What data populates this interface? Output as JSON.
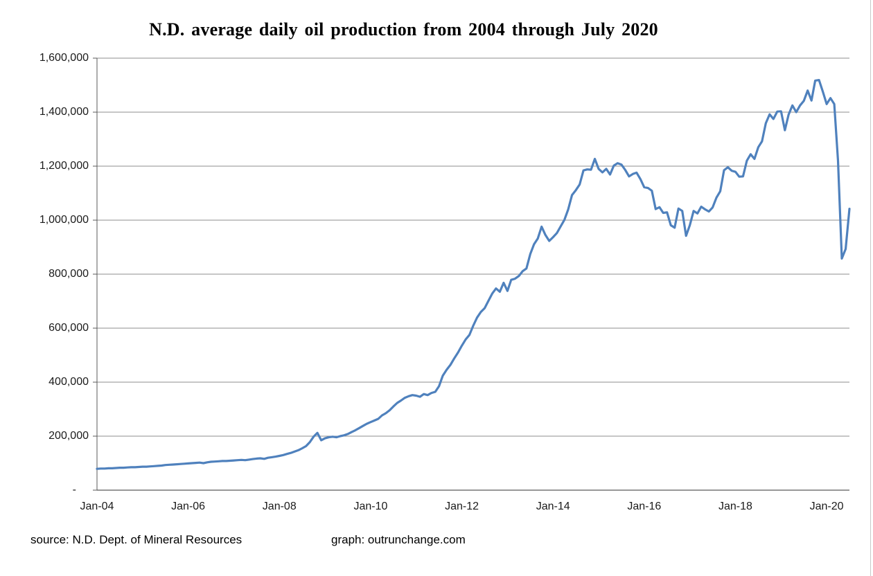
{
  "title": "N.D. average daily oil production from 2004 through July 2020",
  "footer": {
    "source": "source: N.D. Dept. of Mineral Resources",
    "graph": "graph: outrunchange.com"
  },
  "colors": {
    "series_line": "#4F81BD",
    "gridline": "#8C8C8C",
    "axis": "#595959",
    "background": "#FFFFFF",
    "right_edge_line": "#C9C9C9"
  },
  "chart_data": {
    "type": "line",
    "title": "N.D. average daily oil production from 2004 through July 2020",
    "xlabel": "",
    "ylabel": "",
    "values_unit": "barrels per day",
    "x_unit": "month",
    "x_start": "Jan-2004",
    "x_end": "Jul-2020",
    "x_interval": "monthly",
    "grid": "horizontal",
    "legend": "none",
    "ylim": [
      0,
      1600000
    ],
    "y_gridline_step": 200000,
    "y_tick_labels": [
      "-",
      "200,000",
      "400,000",
      "600,000",
      "800,000",
      "1,000,000",
      "1,200,000",
      "1,400,000",
      "1,600,000"
    ],
    "x_tick_labels": [
      "Jan-04",
      "Jan-06",
      "Jan-08",
      "Jan-10",
      "Jan-12",
      "Jan-14",
      "Jan-16",
      "Jan-18",
      "Jan-20"
    ],
    "x_tick_month_indices": [
      0,
      24,
      48,
      72,
      96,
      120,
      144,
      168,
      192
    ],
    "series": [
      {
        "name": "N.D. average daily oil production (bbl/day)",
        "color": "#4F81BD",
        "values": [
          79000,
          80000,
          80000,
          81000,
          81000,
          82000,
          83000,
          83000,
          84000,
          85000,
          85000,
          86000,
          87000,
          87000,
          88000,
          89000,
          90000,
          91000,
          93000,
          94000,
          95000,
          96000,
          97000,
          98000,
          99000,
          100000,
          101000,
          102000,
          100000,
          103000,
          105000,
          106000,
          107000,
          108000,
          108000,
          109000,
          110000,
          111000,
          112000,
          111000,
          113000,
          115000,
          117000,
          118000,
          116000,
          120000,
          122000,
          124000,
          127000,
          130000,
          134000,
          138000,
          143000,
          148000,
          155000,
          163000,
          178000,
          198000,
          212000,
          185000,
          192000,
          196000,
          198000,
          196000,
          200000,
          203000,
          208000,
          215000,
          222000,
          230000,
          238000,
          246000,
          252000,
          258000,
          264000,
          277000,
          285000,
          296000,
          310000,
          323000,
          332000,
          342000,
          348000,
          352000,
          350000,
          346000,
          356000,
          352000,
          360000,
          364000,
          385000,
          424000,
          446000,
          464000,
          488000,
          510000,
          535000,
          558000,
          575000,
          609000,
          639000,
          660000,
          674000,
          701000,
          728000,
          747000,
          735000,
          768000,
          738000,
          779000,
          783000,
          793000,
          811000,
          821000,
          874000,
          911000,
          932000,
          976000,
          945000,
          923000,
          937000,
          952000,
          977000,
          1001000,
          1040000,
          1093000,
          1111000,
          1132000,
          1184000,
          1188000,
          1187000,
          1227000,
          1190000,
          1177000,
          1190000,
          1169000,
          1202000,
          1211000,
          1206000,
          1186000,
          1162000,
          1171000,
          1176000,
          1152000,
          1122000,
          1119000,
          1109000,
          1041000,
          1048000,
          1027000,
          1029000,
          981000,
          972000,
          1043000,
          1034000,
          942000,
          981000,
          1034000,
          1025000,
          1050000,
          1040000,
          1032000,
          1047000,
          1083000,
          1107000,
          1185000,
          1196000,
          1183000,
          1179000,
          1161000,
          1162000,
          1220000,
          1244000,
          1227000,
          1270000,
          1292000,
          1359000,
          1392000,
          1375000,
          1402000,
          1403000,
          1333000,
          1391000,
          1425000,
          1400000,
          1425000,
          1442000,
          1480000,
          1443000,
          1517000,
          1519000,
          1476000,
          1430000,
          1452000,
          1430000,
          1220000,
          858000,
          893000,
          1042000
        ]
      }
    ]
  }
}
